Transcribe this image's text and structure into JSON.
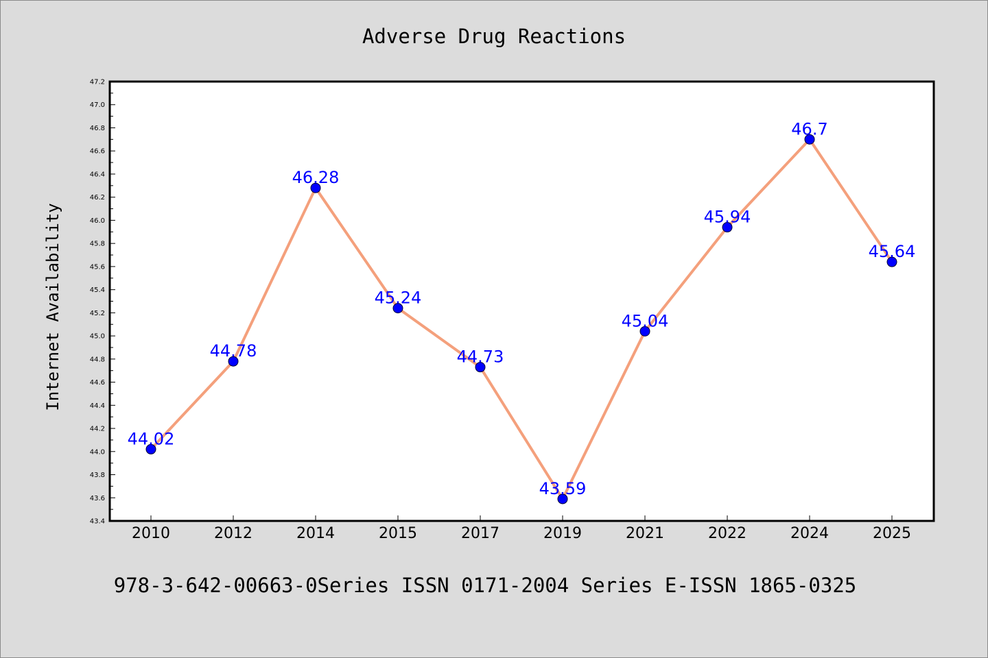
{
  "chart_data": {
    "type": "line",
    "title": "Adverse Drug Reactions",
    "xlabel": "",
    "ylabel": "Internet Availability",
    "categories": [
      "2010",
      "2012",
      "2014",
      "2015",
      "2017",
      "2019",
      "2021",
      "2022",
      "2024",
      "2025"
    ],
    "series": [
      {
        "values": [
          44.02,
          44.78,
          46.28,
          45.24,
          44.73,
          43.59,
          45.04,
          45.94,
          46.7,
          45.64
        ],
        "data_labels": [
          "44.02",
          "44.78",
          "46.28",
          "45.24",
          "44.73",
          "43.59",
          "45.04",
          "45.94",
          "46.7",
          "45.64"
        ],
        "line_color": "#f4a07c",
        "marker_color": "#0000ff"
      }
    ],
    "ylim": [
      43.4,
      47.2
    ],
    "yticks": [
      "43.4",
      "43.6",
      "43.8",
      "44.0",
      "44.2",
      "44.4",
      "44.6",
      "44.8",
      "45.0",
      "45.2",
      "45.4",
      "45.6",
      "45.8",
      "46.0",
      "46.2",
      "46.4",
      "46.6",
      "46.8",
      "47.0",
      "47.2"
    ],
    "grid": false,
    "legend": "none"
  },
  "footer": {
    "text": "978-3-642-00663-0Series ISSN 0171-2004 Series E-ISSN 1865-0325"
  },
  "colors": {
    "background": "#dcdcdc",
    "plot_background": "#ffffff",
    "line": "#f4a07c",
    "marker": "#0000ff",
    "data_label": "#0000ff"
  }
}
